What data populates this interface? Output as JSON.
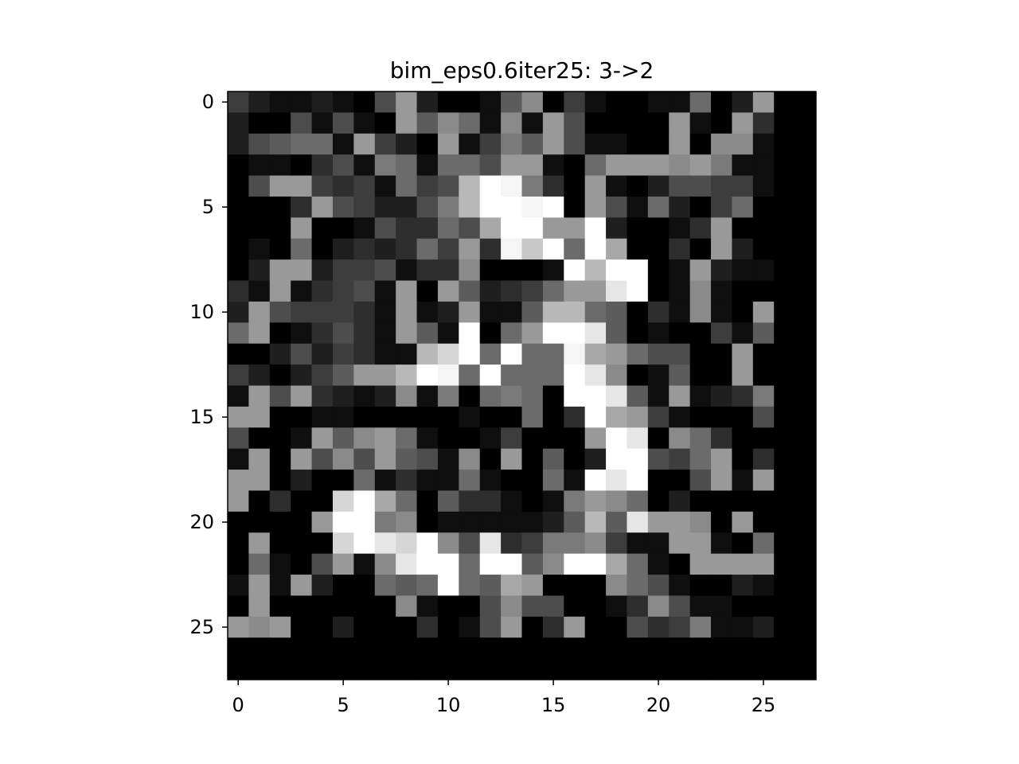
{
  "chart_data": {
    "type": "heatmap",
    "title": "bim_eps0.6iter25: 3->2",
    "colormap": "gray",
    "vmin": 0,
    "vmax": 1,
    "xlim": [
      -0.5,
      27.5
    ],
    "ylim": [
      27.5,
      -0.5
    ],
    "xticks": [
      0,
      5,
      10,
      15,
      20,
      25
    ],
    "yticks": [
      0,
      5,
      10,
      15,
      20,
      25
    ],
    "xtick_labels": [
      "0",
      "5",
      "10",
      "15",
      "20",
      "25"
    ],
    "ytick_labels": [
      "0",
      "5",
      "10",
      "15",
      "20",
      "25"
    ],
    "grid": false,
    "legend": "none",
    "values": [
      [
        0.24,
        0.12,
        0.06,
        0.06,
        0.12,
        0.06,
        0.0,
        0.3,
        0.6,
        0.12,
        0.0,
        0.0,
        0.06,
        0.36,
        0.54,
        0.0,
        0.24,
        0.06,
        0.0,
        0.0,
        0.06,
        0.06,
        0.42,
        0.0,
        0.12,
        0.6,
        0.0,
        0.0
      ],
      [
        0.12,
        0.0,
        0.0,
        0.3,
        0.06,
        0.3,
        0.06,
        0.0,
        0.6,
        0.36,
        0.54,
        0.42,
        0.06,
        0.54,
        0.06,
        0.6,
        0.3,
        0.0,
        0.0,
        0.0,
        0.0,
        0.6,
        0.06,
        0.0,
        0.6,
        0.18,
        0.0,
        0.0
      ],
      [
        0.12,
        0.3,
        0.36,
        0.42,
        0.42,
        0.06,
        0.6,
        0.24,
        0.12,
        0.0,
        0.6,
        0.06,
        0.24,
        0.48,
        0.36,
        0.6,
        0.3,
        0.06,
        0.06,
        0.0,
        0.0,
        0.6,
        0.0,
        0.54,
        0.54,
        0.06,
        0.0,
        0.0
      ],
      [
        0.0,
        0.06,
        0.06,
        0.0,
        0.18,
        0.3,
        0.06,
        0.48,
        0.42,
        0.06,
        0.42,
        0.42,
        0.3,
        0.6,
        0.6,
        0.06,
        0.0,
        0.42,
        0.6,
        0.6,
        0.6,
        0.54,
        0.6,
        0.48,
        0.06,
        0.06,
        0.0,
        0.0
      ],
      [
        0.0,
        0.3,
        0.6,
        0.6,
        0.24,
        0.18,
        0.24,
        0.06,
        0.42,
        0.24,
        0.3,
        0.72,
        1.0,
        0.96,
        0.48,
        0.18,
        0.0,
        0.6,
        0.06,
        0.0,
        0.12,
        0.3,
        0.3,
        0.24,
        0.24,
        0.06,
        0.0,
        0.0
      ],
      [
        0.0,
        0.0,
        0.0,
        0.18,
        0.6,
        0.3,
        0.24,
        0.12,
        0.12,
        0.3,
        0.48,
        0.72,
        1.0,
        1.0,
        0.96,
        1.0,
        0.0,
        0.6,
        0.3,
        0.06,
        0.42,
        0.12,
        0.0,
        0.24,
        0.42,
        0.0,
        0.0,
        0.0
      ],
      [
        0.0,
        0.0,
        0.0,
        0.6,
        0.0,
        0.0,
        0.06,
        0.3,
        0.18,
        0.18,
        0.42,
        0.3,
        0.66,
        1.0,
        1.0,
        0.6,
        0.6,
        1.0,
        0.12,
        0.0,
        0.0,
        0.06,
        0.18,
        0.6,
        0.0,
        0.0,
        0.0,
        0.0
      ],
      [
        0.0,
        0.06,
        0.0,
        0.42,
        0.0,
        0.12,
        0.18,
        0.12,
        0.18,
        0.42,
        0.24,
        0.6,
        0.18,
        0.96,
        0.78,
        1.0,
        0.42,
        1.0,
        0.66,
        0.0,
        0.0,
        0.18,
        0.0,
        0.6,
        0.12,
        0.0,
        0.0,
        0.0
      ],
      [
        0.0,
        0.12,
        0.6,
        0.6,
        0.12,
        0.24,
        0.24,
        0.3,
        0.06,
        0.18,
        0.18,
        0.54,
        0.0,
        0.0,
        0.0,
        0.06,
        1.0,
        0.72,
        1.0,
        1.0,
        0.0,
        0.06,
        0.6,
        0.12,
        0.06,
        0.06,
        0.0,
        0.0
      ],
      [
        0.18,
        0.06,
        0.6,
        0.06,
        0.18,
        0.24,
        0.3,
        0.06,
        0.6,
        0.0,
        0.6,
        0.36,
        0.12,
        0.18,
        0.24,
        0.42,
        0.6,
        0.6,
        0.9,
        1.0,
        0.0,
        0.06,
        0.54,
        0.06,
        0.0,
        0.0,
        0.0,
        0.0
      ],
      [
        0.12,
        0.6,
        0.3,
        0.24,
        0.24,
        0.24,
        0.18,
        0.06,
        0.6,
        0.06,
        0.12,
        0.6,
        0.06,
        0.06,
        0.36,
        0.72,
        0.72,
        0.42,
        0.36,
        0.0,
        0.18,
        0.06,
        0.54,
        0.06,
        0.0,
        0.6,
        0.0,
        0.0
      ],
      [
        0.42,
        0.6,
        0.0,
        0.06,
        0.18,
        0.3,
        0.18,
        0.06,
        0.6,
        0.36,
        0.06,
        1.0,
        0.0,
        0.42,
        0.6,
        1.0,
        1.0,
        0.9,
        0.36,
        0.0,
        0.06,
        0.0,
        0.0,
        0.24,
        0.06,
        0.36,
        0.0,
        0.0
      ],
      [
        0.0,
        0.0,
        0.12,
        0.3,
        0.12,
        0.24,
        0.18,
        0.06,
        0.06,
        0.72,
        0.84,
        1.0,
        0.42,
        1.0,
        0.42,
        0.42,
        0.96,
        0.66,
        0.6,
        0.42,
        0.3,
        0.3,
        0.0,
        0.0,
        0.6,
        0.0,
        0.0,
        0.0
      ],
      [
        0.24,
        0.12,
        0.0,
        0.12,
        0.24,
        0.36,
        0.6,
        0.6,
        0.72,
        1.0,
        0.96,
        0.42,
        1.0,
        0.42,
        0.42,
        0.42,
        1.0,
        0.9,
        0.54,
        0.0,
        0.06,
        0.36,
        0.0,
        0.0,
        0.6,
        0.0,
        0.0,
        0.0
      ],
      [
        0.06,
        0.6,
        0.3,
        0.6,
        0.18,
        0.12,
        0.06,
        0.12,
        0.54,
        0.06,
        0.48,
        0.0,
        0.42,
        0.48,
        0.42,
        0.0,
        1.0,
        1.0,
        0.9,
        0.36,
        0.06,
        0.6,
        0.06,
        0.12,
        0.18,
        0.48,
        0.0,
        0.0
      ],
      [
        0.6,
        0.6,
        0.0,
        0.0,
        0.06,
        0.06,
        0.0,
        0.0,
        0.0,
        0.0,
        0.0,
        0.06,
        0.0,
        0.0,
        0.42,
        0.0,
        0.18,
        1.0,
        0.66,
        0.6,
        0.24,
        0.06,
        0.0,
        0.0,
        0.0,
        0.3,
        0.0,
        0.0
      ],
      [
        0.3,
        0.0,
        0.0,
        0.06,
        0.6,
        0.36,
        0.54,
        0.6,
        0.42,
        0.06,
        0.0,
        0.0,
        0.06,
        0.24,
        0.0,
        0.0,
        0.0,
        0.6,
        1.0,
        0.9,
        0.0,
        0.54,
        0.42,
        0.18,
        0.0,
        0.0,
        0.0,
        0.0
      ],
      [
        0.06,
        0.6,
        0.0,
        0.6,
        0.3,
        0.54,
        0.3,
        0.6,
        0.36,
        0.3,
        0.06,
        0.54,
        0.0,
        0.6,
        0.0,
        0.36,
        0.0,
        0.12,
        1.0,
        1.0,
        0.3,
        0.24,
        0.42,
        0.6,
        0.0,
        0.18,
        0.0,
        0.0
      ],
      [
        0.6,
        0.6,
        0.0,
        0.12,
        0.0,
        0.0,
        0.42,
        0.06,
        0.18,
        0.06,
        0.06,
        0.42,
        0.06,
        0.0,
        0.0,
        0.42,
        0.06,
        1.0,
        0.9,
        1.0,
        0.0,
        0.0,
        0.3,
        0.6,
        0.06,
        0.6,
        0.0,
        0.0
      ],
      [
        0.6,
        0.0,
        0.18,
        0.0,
        0.0,
        0.84,
        1.0,
        0.66,
        0.42,
        0.0,
        0.36,
        0.18,
        0.18,
        0.06,
        0.0,
        0.06,
        0.48,
        0.6,
        0.54,
        0.42,
        0.0,
        0.12,
        0.0,
        0.0,
        0.0,
        0.0,
        0.0,
        0.0
      ],
      [
        0.0,
        0.0,
        0.0,
        0.0,
        0.6,
        1.0,
        1.0,
        0.48,
        0.54,
        0.0,
        0.06,
        0.06,
        0.06,
        0.06,
        0.06,
        0.12,
        0.36,
        0.72,
        0.36,
        0.9,
        0.6,
        0.6,
        0.54,
        0.0,
        0.6,
        0.0,
        0.0,
        0.0
      ],
      [
        0.0,
        0.6,
        0.0,
        0.0,
        0.0,
        0.84,
        1.0,
        0.9,
        0.84,
        1.0,
        0.54,
        0.3,
        0.9,
        0.18,
        0.24,
        0.48,
        0.48,
        0.54,
        0.24,
        0.06,
        0.06,
        0.6,
        0.6,
        0.06,
        0.0,
        0.42,
        0.0,
        0.0
      ],
      [
        0.0,
        0.42,
        0.06,
        0.0,
        0.3,
        0.6,
        0.06,
        0.54,
        0.9,
        1.0,
        1.0,
        0.42,
        1.0,
        1.0,
        0.36,
        0.54,
        1.0,
        1.0,
        0.66,
        0.42,
        0.06,
        0.0,
        0.6,
        0.6,
        0.6,
        0.6,
        0.0,
        0.0
      ],
      [
        0.06,
        0.6,
        0.06,
        0.6,
        0.12,
        0.0,
        0.0,
        0.42,
        0.36,
        0.42,
        1.0,
        0.42,
        0.36,
        0.66,
        0.6,
        0.0,
        0.0,
        0.0,
        0.54,
        0.42,
        0.3,
        0.06,
        0.0,
        0.0,
        0.12,
        0.06,
        0.0,
        0.0
      ],
      [
        0.0,
        0.6,
        0.0,
        0.0,
        0.0,
        0.0,
        0.0,
        0.0,
        0.54,
        0.06,
        0.0,
        0.0,
        0.3,
        0.54,
        0.3,
        0.3,
        0.0,
        0.0,
        0.06,
        0.18,
        0.54,
        0.3,
        0.06,
        0.06,
        0.0,
        0.0,
        0.0,
        0.0
      ],
      [
        0.6,
        0.54,
        0.6,
        0.0,
        0.0,
        0.12,
        0.0,
        0.0,
        0.0,
        0.18,
        0.0,
        0.06,
        0.3,
        0.6,
        0.0,
        0.18,
        0.6,
        0.0,
        0.0,
        0.3,
        0.18,
        0.24,
        0.48,
        0.06,
        0.06,
        0.12,
        0.0,
        0.0
      ],
      [
        0.0,
        0.0,
        0.0,
        0.0,
        0.0,
        0.0,
        0.0,
        0.0,
        0.0,
        0.0,
        0.0,
        0.0,
        0.0,
        0.0,
        0.0,
        0.0,
        0.0,
        0.0,
        0.0,
        0.0,
        0.0,
        0.0,
        0.0,
        0.0,
        0.0,
        0.0,
        0.0,
        0.0
      ],
      [
        0.0,
        0.0,
        0.0,
        0.0,
        0.0,
        0.0,
        0.0,
        0.0,
        0.0,
        0.0,
        0.0,
        0.0,
        0.0,
        0.0,
        0.0,
        0.0,
        0.0,
        0.0,
        0.0,
        0.0,
        0.0,
        0.0,
        0.0,
        0.0,
        0.0,
        0.0,
        0.0,
        0.0
      ]
    ]
  }
}
